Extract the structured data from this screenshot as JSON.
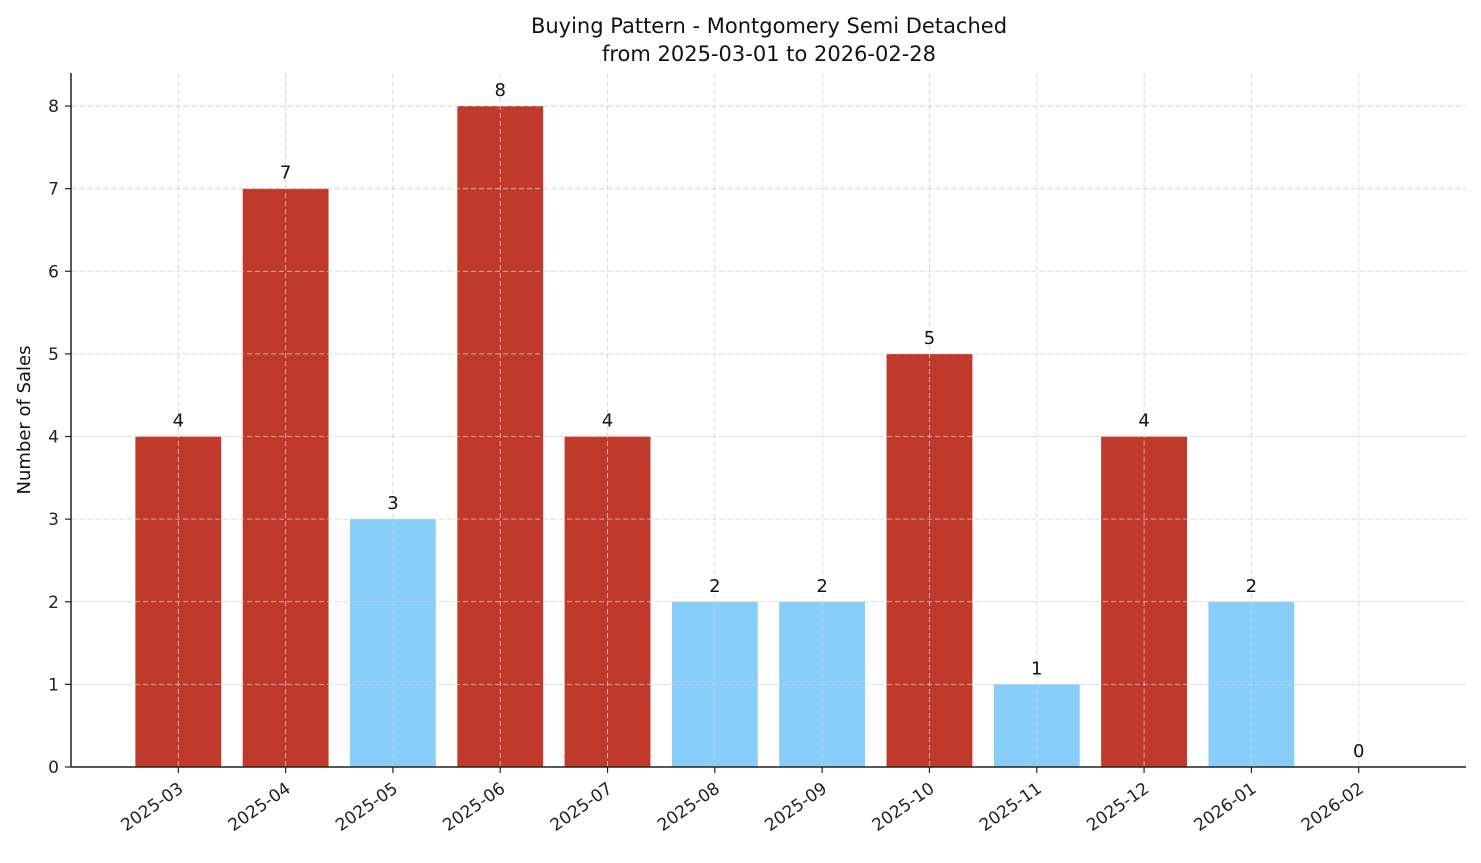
{
  "chart_data": {
    "type": "bar",
    "title": "Buying Pattern - Montgomery Semi Detached",
    "subtitle": "from 2025-03-01 to 2026-02-28",
    "xlabel": "",
    "ylabel": "Number of Sales",
    "categories": [
      "2025-03",
      "2025-04",
      "2025-05",
      "2025-06",
      "2025-07",
      "2025-08",
      "2025-09",
      "2025-10",
      "2025-11",
      "2025-12",
      "2026-01",
      "2026-02"
    ],
    "values": [
      4,
      7,
      3,
      8,
      4,
      2,
      2,
      5,
      1,
      4,
      2,
      0
    ],
    "bar_colors": [
      "#c0392b",
      "#c0392b",
      "#87cefa",
      "#c0392b",
      "#c0392b",
      "#87cefa",
      "#87cefa",
      "#c0392b",
      "#87cefa",
      "#c0392b",
      "#87cefa",
      "#87cefa"
    ],
    "ylim": [
      0,
      8.4
    ],
    "yticks": [
      0,
      1,
      2,
      3,
      4,
      5,
      6,
      7,
      8
    ],
    "grid": true,
    "data_labels": true
  }
}
